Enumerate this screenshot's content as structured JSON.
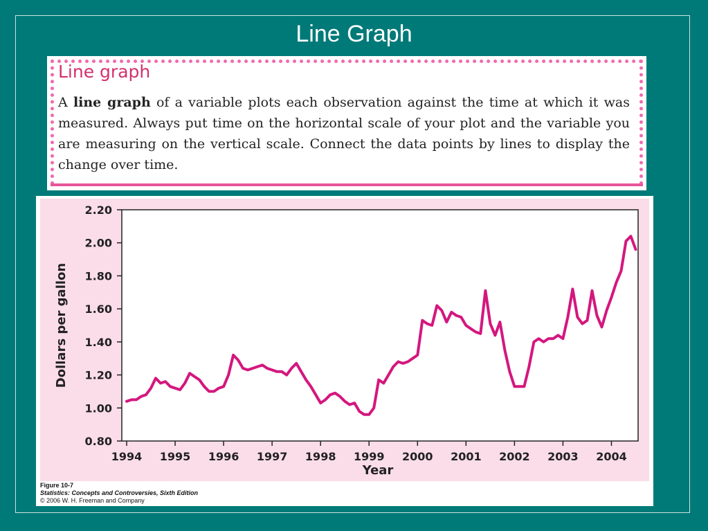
{
  "slide": {
    "title": "Line Graph"
  },
  "definition": {
    "heading": "Line graph",
    "text_pre": "A ",
    "text_bold": "line graph",
    "text_post": " of a variable plots each observation against the time at which it was measured. Always put time on the horizontal scale of your plot and the variable you are measuring on the vertical scale. Connect the data points by lines to display the change over time."
  },
  "figure": {
    "caption_line1": "Figure 10-7",
    "caption_line2": "Statistics: Concepts and Controversies, Sixth Edition",
    "caption_line3": "© 2006 W. H. Freeman and Company"
  },
  "chart_data": {
    "type": "line",
    "title": "",
    "xlabel": "Year",
    "ylabel": "Dollars per gallon",
    "xlim": [
      1993.9,
      2004.55
    ],
    "ylim": [
      0.8,
      2.2
    ],
    "x_ticks": [
      1994,
      1995,
      1996,
      1997,
      1998,
      1999,
      2000,
      2001,
      2002,
      2003,
      2004
    ],
    "y_ticks": [
      "0.80",
      "1.00",
      "1.20",
      "1.40",
      "1.60",
      "1.80",
      "2.00",
      "2.20"
    ],
    "grid": false,
    "line_color": "#d4177e",
    "series": [
      {
        "x": [
          1994.0,
          1994.1,
          1994.2,
          1994.3,
          1994.4,
          1994.5,
          1994.6,
          1994.7,
          1994.8,
          1994.9,
          1995.0,
          1995.1,
          1995.2,
          1995.3,
          1995.4,
          1995.5,
          1995.6,
          1995.7,
          1995.8,
          1995.9,
          1996.0,
          1996.1,
          1996.2,
          1996.3,
          1996.4,
          1996.5,
          1996.6,
          1996.7,
          1996.8,
          1996.9,
          1997.0,
          1997.1,
          1997.2,
          1997.3,
          1997.4,
          1997.5,
          1997.6,
          1997.7,
          1997.8,
          1997.9,
          1998.0,
          1998.1,
          1998.2,
          1998.3,
          1998.4,
          1998.5,
          1998.6,
          1998.7,
          1998.8,
          1998.9,
          1999.0,
          1999.1,
          1999.2,
          1999.3,
          1999.4,
          1999.5,
          1999.6,
          1999.7,
          1999.8,
          1999.9,
          2000.0,
          2000.1,
          2000.2,
          2000.3,
          2000.4,
          2000.5,
          2000.6,
          2000.7,
          2000.8,
          2000.9,
          2001.0,
          2001.1,
          2001.2,
          2001.3,
          2001.4,
          2001.5,
          2001.6,
          2001.7,
          2001.8,
          2001.9,
          2002.0,
          2002.1,
          2002.2,
          2002.3,
          2002.4,
          2002.5,
          2002.6,
          2002.7,
          2002.8,
          2002.9,
          2003.0,
          2003.1,
          2003.2,
          2003.3,
          2003.4,
          2003.5,
          2003.6,
          2003.7,
          2003.8,
          2003.9,
          2004.0,
          2004.1,
          2004.2,
          2004.3,
          2004.4,
          2004.5
        ],
        "values": [
          1.04,
          1.05,
          1.05,
          1.07,
          1.08,
          1.12,
          1.18,
          1.15,
          1.16,
          1.13,
          1.12,
          1.11,
          1.15,
          1.21,
          1.19,
          1.17,
          1.13,
          1.1,
          1.1,
          1.12,
          1.13,
          1.2,
          1.32,
          1.29,
          1.24,
          1.23,
          1.24,
          1.25,
          1.26,
          1.24,
          1.23,
          1.22,
          1.22,
          1.2,
          1.24,
          1.27,
          1.22,
          1.17,
          1.13,
          1.08,
          1.03,
          1.05,
          1.08,
          1.09,
          1.07,
          1.04,
          1.02,
          1.03,
          0.98,
          0.96,
          0.96,
          1.0,
          1.17,
          1.15,
          1.2,
          1.25,
          1.28,
          1.27,
          1.28,
          1.3,
          1.32,
          1.53,
          1.51,
          1.5,
          1.62,
          1.59,
          1.52,
          1.58,
          1.56,
          1.55,
          1.5,
          1.48,
          1.46,
          1.45,
          1.71,
          1.51,
          1.44,
          1.52,
          1.35,
          1.22,
          1.13,
          1.13,
          1.13,
          1.25,
          1.4,
          1.42,
          1.4,
          1.42,
          1.42,
          1.44,
          1.42,
          1.55,
          1.72,
          1.55,
          1.51,
          1.53,
          1.71,
          1.56,
          1.49,
          1.59,
          1.67,
          1.76,
          1.83,
          2.01,
          2.04,
          1.96
        ]
      }
    ]
  }
}
